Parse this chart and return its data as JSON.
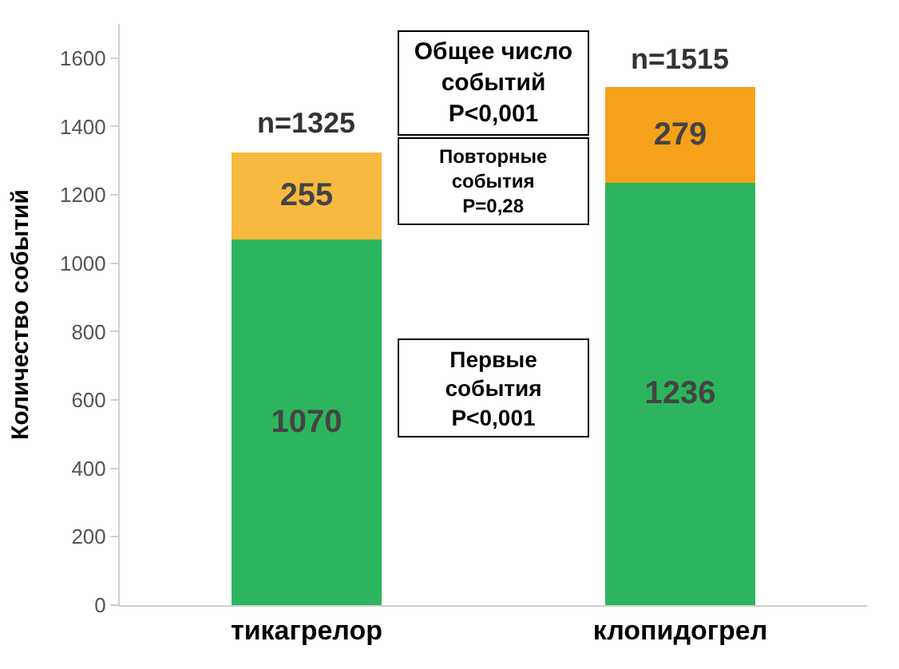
{
  "chart_data": {
    "type": "bar",
    "stacked": true,
    "ylabel": "Количество событий",
    "categories": [
      "тикагрелор",
      "клопидогрел"
    ],
    "series": [
      {
        "color": "#2db55d",
        "values": [
          1070,
          1236
        ]
      },
      {
        "colors": [
          "#f8b940",
          "#f5a11c"
        ],
        "values": [
          255,
          279
        ]
      }
    ],
    "data_labels": true,
    "totals": [
      "n=1325",
      "n=1515"
    ],
    "annotations": [
      "Общее число\nсобытий\nP<0,001",
      "Повторные\nсобытия\nP=0,28",
      "Первые\nсобытия\nP<0,001"
    ],
    "yticks": [
      0,
      200,
      400,
      600,
      800,
      1000,
      1200,
      1400,
      1600
    ],
    "ylim": [
      0,
      1700
    ]
  }
}
